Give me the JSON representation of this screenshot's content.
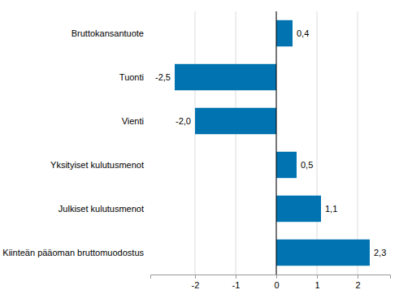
{
  "chart_data": {
    "type": "bar",
    "orientation": "horizontal",
    "categories": [
      "Bruttokansantuote",
      "Tuonti",
      "Vienti",
      "Yksityiset kulutusmenot",
      "Julkiset kulutusmenot",
      "Kiinteän pääoman bruttomuodostus"
    ],
    "values": [
      0.4,
      -2.5,
      -2.0,
      0.5,
      1.1,
      2.3
    ],
    "value_labels": [
      "0,4",
      "-2,5",
      "-2,0",
      "0,5",
      "1,1",
      "2,3"
    ],
    "color": "#0073b0",
    "xlim": [
      -3.1,
      2.8
    ],
    "xticks": [
      -2,
      -1,
      0,
      1,
      2
    ],
    "grid": true,
    "data_labels": true
  }
}
